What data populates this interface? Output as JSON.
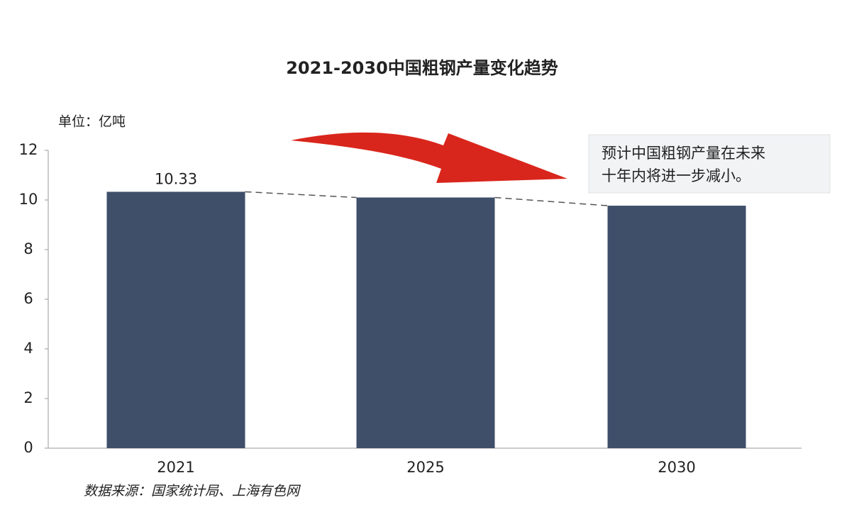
{
  "chart_data": {
    "type": "bar",
    "title": "2021-2030中国粗钢产量变化趋势",
    "unit_label": "单位：亿吨",
    "categories": [
      "2021",
      "2025",
      "2030"
    ],
    "values": [
      10.33,
      10.1,
      9.77
    ],
    "value_labels": [
      "10.33",
      null,
      null
    ],
    "color": "#3f4f6a",
    "ylim": [
      0,
      12
    ],
    "yticks": [
      0,
      2,
      4,
      6,
      8,
      10,
      12
    ],
    "grid": false,
    "trend_line": true,
    "annotation": [
      "预计中国粗钢产量在未来",
      "十年内将进一步减小。"
    ],
    "source": "数据来源：国家统计局、上海有色网"
  }
}
